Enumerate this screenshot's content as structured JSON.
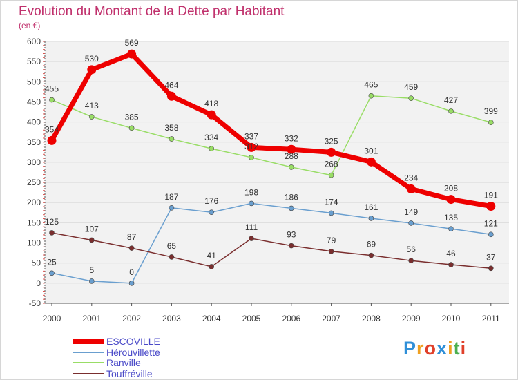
{
  "title": "Evolution du Montant de la Dette par Habitant",
  "subtitle": "(en €)",
  "logo": {
    "text": "Proxiti",
    "colors": [
      "#2f8fd8",
      "#f0a020",
      "#e0402a",
      "#2f8fd8",
      "#f0a020",
      "#4caf50",
      "#e0402a"
    ]
  },
  "chart_data": {
    "type": "line",
    "x": [
      "2000",
      "2001",
      "2002",
      "2003",
      "2004",
      "2005",
      "2006",
      "2007",
      "2008",
      "2009",
      "2010",
      "2011"
    ],
    "ylim": [
      -50,
      600
    ],
    "yticks": [
      -50,
      0,
      50,
      100,
      150,
      200,
      250,
      300,
      350,
      400,
      450,
      500,
      550,
      600
    ],
    "grid": "horizontal",
    "legend": "bottom-left",
    "series": [
      {
        "name": "ESCOVILLE",
        "color": "#ee0000",
        "width": 7,
        "marker": 6.5,
        "values": [
          354,
          530,
          569,
          464,
          418,
          337,
          332,
          325,
          301,
          234,
          208,
          191
        ],
        "labels": [
          "354",
          "530",
          "569",
          "464",
          "418",
          "337",
          "332",
          "325",
          "301",
          "234",
          "208",
          "191"
        ]
      },
      {
        "name": "Hérouvillette",
        "color": "#6a9fcf",
        "width": 1.5,
        "marker": 3.5,
        "values": [
          25,
          5,
          0,
          187,
          176,
          198,
          186,
          174,
          161,
          149,
          135,
          121
        ],
        "labels": [
          "25",
          "5",
          "0",
          "187",
          "176",
          "198",
          "186",
          "174",
          "161",
          "149",
          "135",
          "121"
        ]
      },
      {
        "name": "Ranville",
        "color": "#99dd66",
        "width": 1.5,
        "marker": 3.5,
        "values": [
          455,
          413,
          385,
          358,
          334,
          312,
          288,
          268,
          465,
          459,
          427,
          399
        ],
        "labels": [
          "455",
          "413",
          "385",
          "358",
          "334",
          "312",
          "288",
          "268",
          "465",
          "459",
          "427",
          "399"
        ]
      },
      {
        "name": "Touffréville",
        "color": "#7a2e2e",
        "width": 1.5,
        "marker": 3.5,
        "values": [
          125,
          107,
          87,
          65,
          41,
          111,
          93,
          79,
          69,
          56,
          46,
          37
        ],
        "labels": [
          "125",
          "107",
          "87",
          "65",
          "41",
          "111",
          "93",
          "79",
          "69",
          "56",
          "46",
          "37"
        ]
      }
    ]
  }
}
